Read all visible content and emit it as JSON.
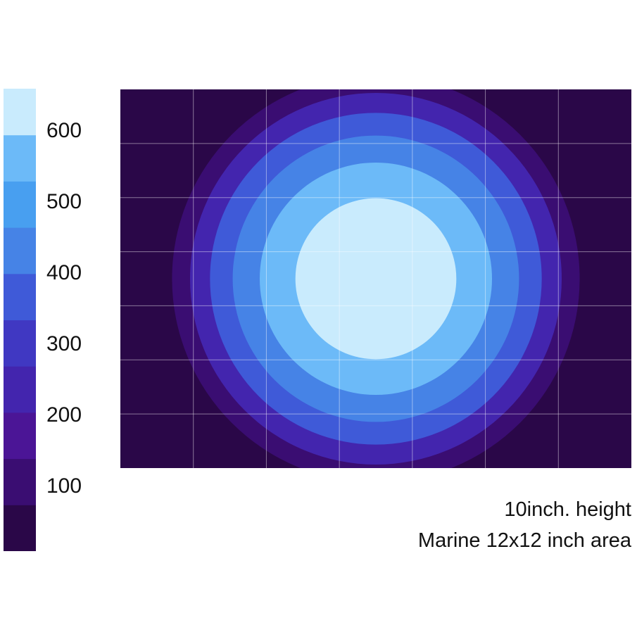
{
  "chart_data": {
    "type": "heatmap",
    "title": "",
    "xlabel": "",
    "ylabel": "",
    "colorbar": {
      "ticks": [
        "600",
        "500",
        "400",
        "300",
        "200",
        "100"
      ],
      "tick_values": [
        600,
        500,
        400,
        300,
        200,
        100
      ],
      "range": [
        0,
        650
      ],
      "bins": [
        {
          "from": 0,
          "to": 65,
          "color": "#2a0748"
        },
        {
          "from": 65,
          "to": 130,
          "color": "#3a0d72"
        },
        {
          "from": 130,
          "to": 195,
          "color": "#4b1596"
        },
        {
          "from": 195,
          "to": 260,
          "color": "#4325ae"
        },
        {
          "from": 260,
          "to": 325,
          "color": "#4038c2"
        },
        {
          "from": 325,
          "to": 390,
          "color": "#3f5ad8"
        },
        {
          "from": 390,
          "to": 455,
          "color": "#4683e6"
        },
        {
          "from": 455,
          "to": 520,
          "color": "#489ff0"
        },
        {
          "from": 520,
          "to": 585,
          "color": "#6cbaf8"
        },
        {
          "from": 585,
          "to": 650,
          "color": "#c9ebfd"
        }
      ]
    },
    "grid": true,
    "grid_cells": {
      "columns": 7,
      "rows": 7
    },
    "contour_levels": [
      {
        "value": 100,
        "color": "#3a0d72"
      },
      {
        "value": 200,
        "color": "#4325ae"
      },
      {
        "value": 300,
        "color": "#3f5ad8"
      },
      {
        "value": 400,
        "color": "#4683e6"
      },
      {
        "value": 500,
        "color": "#6cbaf8"
      },
      {
        "value": 600,
        "color": "#c9ebfd"
      }
    ],
    "background_color": "#2a0748"
  },
  "caption": {
    "line1": "10inch. height",
    "line2": "Marine 12x12 inch area"
  }
}
